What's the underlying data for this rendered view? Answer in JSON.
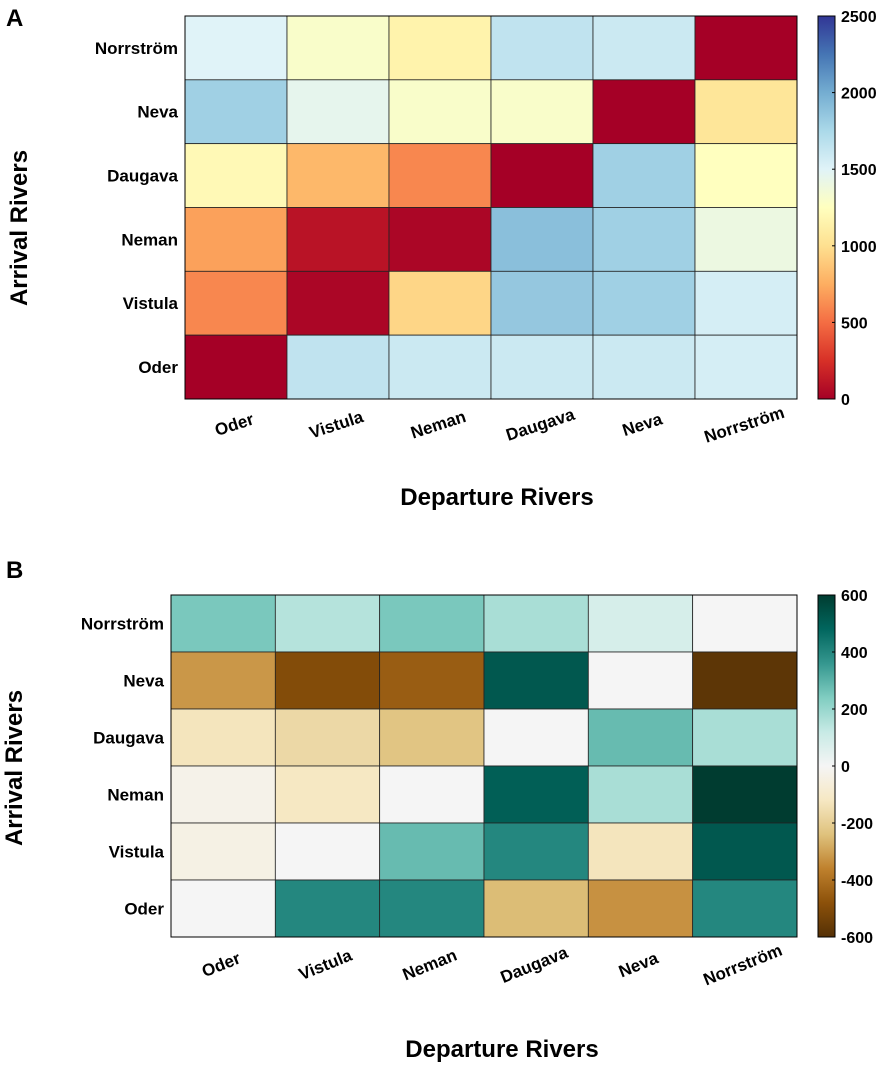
{
  "figure": {
    "panels": [
      "A",
      "B"
    ]
  },
  "chart_data": [
    {
      "type": "heatmap",
      "panel": "A",
      "xlabel": "Departure Rivers",
      "ylabel": "Arrival Rivers",
      "x_categories": [
        "Oder",
        "Vistula",
        "Neman",
        "Daugava",
        "Neva",
        "Norrström"
      ],
      "y_categories": [
        "Norrström",
        "Neva",
        "Daugava",
        "Neman",
        "Vistula",
        "Oder"
      ],
      "values": [
        [
          1500,
          1300,
          1150,
          1650,
          1600,
          0
        ],
        [
          1800,
          1450,
          1300,
          1300,
          0,
          1050
        ],
        [
          1200,
          800,
          600,
          0,
          1800,
          1250
        ],
        [
          700,
          100,
          30,
          1900,
          1800,
          1400
        ],
        [
          600,
          30,
          950,
          1850,
          1800,
          1550
        ],
        [
          0,
          1650,
          1600,
          1600,
          1600,
          1550
        ]
      ],
      "colormap": "RdYlBu",
      "clim": [
        0,
        2500
      ],
      "colorbar_ticks": [
        "2500",
        "2000",
        "1500",
        "1000",
        "500",
        "0"
      ]
    },
    {
      "type": "heatmap",
      "panel": "B",
      "xlabel": "Departure Rivers",
      "ylabel": "Arrival Rivers",
      "x_categories": [
        "Oder",
        "Vistula",
        "Neman",
        "Daugava",
        "Neva",
        "Norrström"
      ],
      "y_categories": [
        "Norrström",
        "Neva",
        "Daugava",
        "Neman",
        "Vistula",
        "Oder"
      ],
      "values": [
        [
          250,
          150,
          250,
          170,
          80,
          0
        ],
        [
          -320,
          -500,
          -450,
          520,
          0,
          -580
        ],
        [
          -130,
          -170,
          -230,
          0,
          280,
          170
        ],
        [
          -30,
          -120,
          0,
          500,
          170,
          600
        ],
        [
          -40,
          0,
          280,
          400,
          -130,
          520
        ],
        [
          0,
          400,
          400,
          -250,
          -330,
          400
        ]
      ],
      "colormap": "BrBG",
      "clim": [
        -600,
        600
      ],
      "colorbar_ticks": [
        "600",
        "400",
        "200",
        "0",
        "-200",
        "-400",
        "-600"
      ]
    }
  ]
}
